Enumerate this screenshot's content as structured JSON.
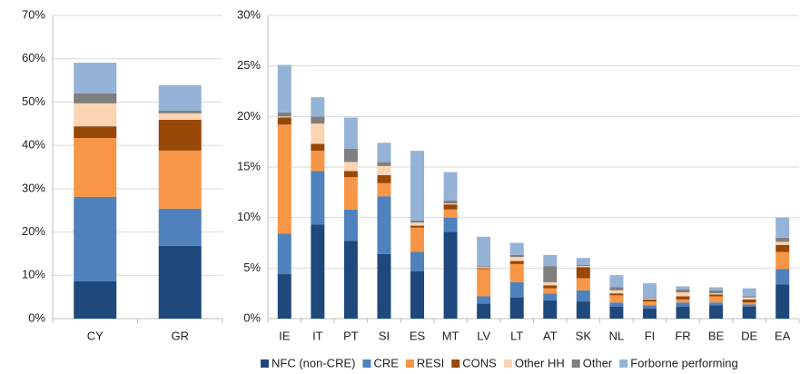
{
  "chart_data": [
    {
      "type": "stacked_bar",
      "categories": [
        "CY",
        "GR"
      ],
      "ylim": [
        0,
        70
      ],
      "yticks": [
        {
          "value": 0,
          "label": "0%"
        },
        {
          "value": 10,
          "label": "10%"
        },
        {
          "value": 20,
          "label": "20%"
        },
        {
          "value": 30,
          "label": "30%"
        },
        {
          "value": 40,
          "label": "40%"
        },
        {
          "value": 50,
          "label": "50%"
        },
        {
          "value": 60,
          "label": "60%"
        },
        {
          "value": 70,
          "label": "70%"
        }
      ],
      "grid": true,
      "series": [
        {
          "color": "#1f497d",
          "values": [
            8.6,
            16.8
          ]
        },
        {
          "color": "#4f81bd",
          "values": [
            19.5,
            8.6
          ]
        },
        {
          "color": "#f79646",
          "values": [
            13.6,
            13.4
          ]
        },
        {
          "color": "#974706",
          "values": [
            2.7,
            7.1
          ]
        },
        {
          "color": "#fbd4b4",
          "values": [
            5.3,
            1.5
          ]
        },
        {
          "color": "#7f7f7f",
          "values": [
            2.3,
            0.6
          ]
        },
        {
          "color": "#95b3d7",
          "values": [
            7.1,
            5.9
          ]
        }
      ]
    },
    {
      "type": "stacked_bar",
      "categories": [
        "IE",
        "IT",
        "PT",
        "SI",
        "ES",
        "MT",
        "LV",
        "LT",
        "AT",
        "SK",
        "NL",
        "FI",
        "FR",
        "BE",
        "DE",
        "EA"
      ],
      "ylim": [
        0,
        30
      ],
      "yticks": [
        {
          "value": 0,
          "label": "0%"
        },
        {
          "value": 5,
          "label": "5%"
        },
        {
          "value": 10,
          "label": "10%"
        },
        {
          "value": 15,
          "label": "15%"
        },
        {
          "value": 20,
          "label": "20%"
        },
        {
          "value": 25,
          "label": "25%"
        },
        {
          "value": 30,
          "label": "30%"
        }
      ],
      "grid": true,
      "legend": "bottom",
      "series": [
        {
          "name": "NFC (non-CRE)",
          "color": "#1f497d",
          "values": [
            4.4,
            9.3,
            7.7,
            6.4,
            4.7,
            8.6,
            1.5,
            2.1,
            1.8,
            1.7,
            1.2,
            1.0,
            1.2,
            1.3,
            1.2,
            3.4
          ]
        },
        {
          "name": "CRE",
          "color": "#4f81bd",
          "values": [
            4.0,
            5.3,
            3.1,
            5.7,
            1.9,
            1.4,
            0.7,
            1.5,
            0.7,
            1.1,
            0.4,
            0.3,
            0.4,
            0.3,
            0.2,
            1.5
          ]
        },
        {
          "name": "RESI",
          "color": "#f79646",
          "values": [
            10.8,
            2.0,
            3.2,
            1.3,
            2.4,
            0.8,
            2.7,
            1.8,
            0.5,
            1.2,
            0.7,
            0.4,
            0.3,
            0.6,
            0.2,
            1.7
          ]
        },
        {
          "name": "CONS",
          "color": "#974706",
          "values": [
            0.7,
            0.7,
            0.6,
            0.8,
            0.2,
            0.5,
            0.1,
            0.3,
            0.3,
            1.1,
            0.2,
            0.2,
            0.3,
            0.2,
            0.3,
            0.7
          ]
        },
        {
          "name": "Other HH",
          "color": "#fbd4b4",
          "values": [
            0.1,
            2.0,
            0.9,
            0.9,
            0.3,
            0.1,
            0.1,
            0.4,
            0.3,
            0.1,
            0.3,
            0.1,
            0.4,
            0.1,
            0.2,
            0.3
          ]
        },
        {
          "name": "Other",
          "color": "#7f7f7f",
          "values": [
            0.4,
            0.7,
            1.3,
            0.4,
            0.2,
            0.3,
            0.1,
            0.2,
            1.6,
            0.1,
            0.3,
            0.1,
            0.3,
            0.3,
            0.1,
            0.4
          ]
        },
        {
          "name": "Forborne performing",
          "color": "#95b3d7",
          "values": [
            4.7,
            1.9,
            3.1,
            1.9,
            6.9,
            2.8,
            2.9,
            1.2,
            1.1,
            0.7,
            1.2,
            1.4,
            0.3,
            0.3,
            0.8,
            2.0
          ]
        }
      ]
    }
  ]
}
